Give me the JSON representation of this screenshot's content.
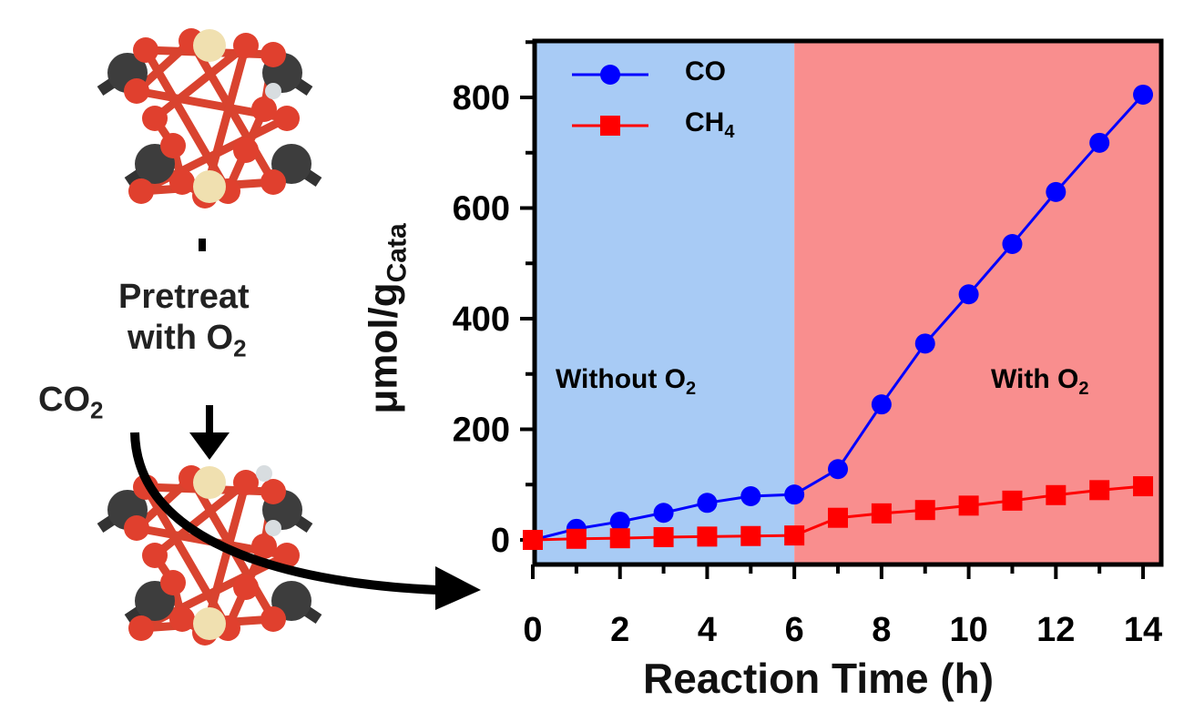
{
  "scheme": {
    "pretreat_line1": "Pretreat",
    "pretreat_line2": "with O",
    "pretreat_sub": "2",
    "reactant": "CO",
    "reactant_sub": "2"
  },
  "chart_data": {
    "type": "line",
    "xlabel": "Reaction Time (h)",
    "ylabel": "μmol/g",
    "ylabel_sub": "Cata",
    "xlim": [
      0,
      14
    ],
    "ylim": [
      -40,
      900
    ],
    "xticks": [
      0,
      2,
      4,
      6,
      8,
      10,
      12,
      14
    ],
    "yticks": [
      0,
      200,
      400,
      600,
      800
    ],
    "x": [
      0,
      1,
      2,
      3,
      4,
      5,
      6,
      7,
      8,
      9,
      10,
      11,
      12,
      13,
      14
    ],
    "series": [
      {
        "name": "CO",
        "name_sub": "",
        "color": "#0000ff",
        "marker": "circle",
        "values": [
          0,
          20,
          33,
          49,
          67,
          79,
          82,
          128,
          245,
          355,
          444,
          535,
          629,
          718,
          805
        ]
      },
      {
        "name": "CH",
        "name_sub": "4",
        "color": "#ff0000",
        "marker": "square",
        "values": [
          0,
          2,
          3,
          5,
          6,
          7,
          8,
          40,
          48,
          54,
          62,
          71,
          81,
          90,
          97
        ]
      }
    ],
    "regions": [
      {
        "label": "Without O",
        "label_sub": "2",
        "from": 0,
        "to": 6,
        "color": "#a8cbf5"
      },
      {
        "label": "With O",
        "label_sub": "2",
        "from": 6,
        "to": 14,
        "color": "#f98e8e"
      }
    ],
    "legend": "top-left",
    "grid": false
  }
}
